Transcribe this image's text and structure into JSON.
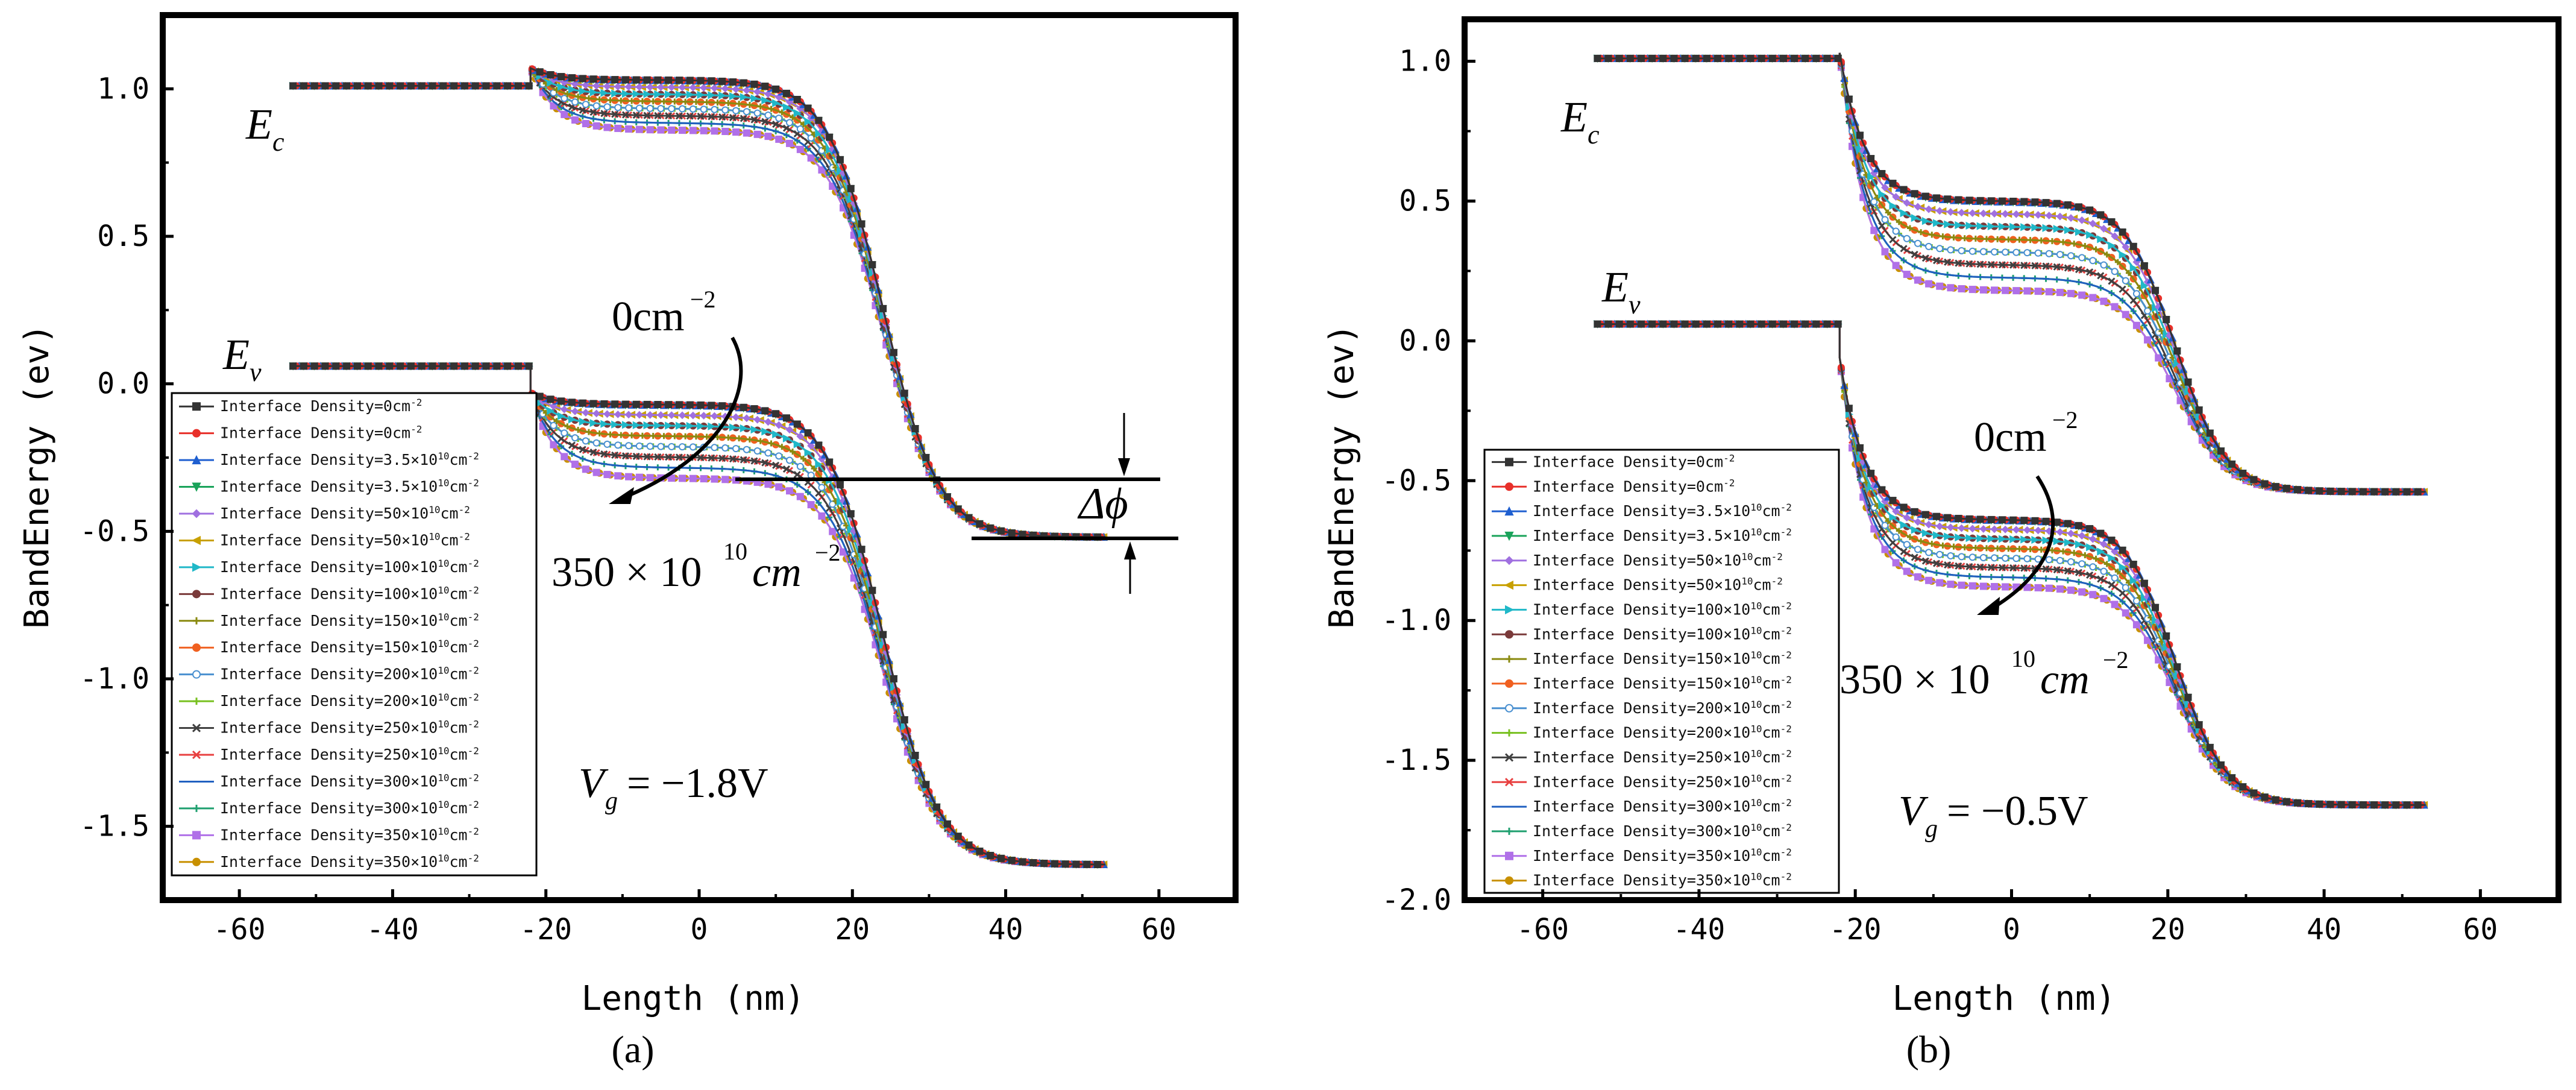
{
  "chart_data": [
    {
      "type": "line",
      "panel": "(a)",
      "xlabel": "Length (nm)",
      "ylabel": "BandEnergy (ev)",
      "xlim": [
        -70,
        70
      ],
      "ylim": [
        -1.75,
        1.25
      ],
      "xticks": [
        -60,
        -40,
        -20,
        0,
        20,
        40,
        60
      ],
      "yticks": [
        1.0,
        0.5,
        0.0,
        -0.5,
        -1.0,
        -1.5
      ],
      "ytick_labels": [
        "1.0",
        "0.5",
        "0.0",
        "-0.5",
        "-1.0",
        "-1.5"
      ],
      "xtick_labels": [
        "-60",
        "-40",
        "-20",
        "0",
        "20",
        "40",
        "60"
      ],
      "band_model": {
        "left_x": -53,
        "junction_x": -22,
        "right_x": 53,
        "ec_left": 1.01,
        "ec_start": 1.07,
        "ec_right": -0.52,
        "ev_left": 0.06,
        "ev_start": -0.03,
        "ev_right": -1.63,
        "center": 24,
        "width": 3.6,
        "ec_plateau_top": 1.03,
        "ec_plateau_bottom": 0.86,
        "ev_plateau_top": -0.07,
        "ev_plateau_bottom": -0.32
      },
      "annotations": {
        "ec_label": "E",
        "ec_sub": "c",
        "ev_label": "E",
        "ev_sub": "v",
        "density_low": "0cm",
        "density_low_exp": "−2",
        "density_high": "350 × 10",
        "density_high_exp": "10",
        "density_high_unit": "cm",
        "density_high_unit_exp": "−2",
        "vg_label": "V",
        "vg_sub": "g",
        "vg_value": " = −1.8V",
        "delta_phi": "Δϕ"
      },
      "caption": "(a)"
    },
    {
      "type": "line",
      "panel": "(b)",
      "xlabel": "Length (nm)",
      "ylabel": "BandEnergy (ev)",
      "xlim": [
        -70,
        70
      ],
      "ylim": [
        -2.0,
        1.15
      ],
      "xticks": [
        -60,
        -40,
        -20,
        0,
        20,
        40,
        60
      ],
      "yticks": [
        1.0,
        0.5,
        0.0,
        -0.5,
        -1.0,
        -1.5,
        -2.0
      ],
      "ytick_labels": [
        "1.0",
        "0.5",
        "0.0",
        "-0.5",
        "-1.0",
        "-1.5",
        "-2.0"
      ],
      "xtick_labels": [
        "-60",
        "-40",
        "-20",
        "0",
        "20",
        "40",
        "60"
      ],
      "band_model": {
        "left_x": -53,
        "junction_x": -22,
        "right_x": 53,
        "ec_left": 1.01,
        "ec_start": 1.03,
        "ec_right": -0.54,
        "ev_left": 0.06,
        "ev_start": -0.06,
        "ev_right": -1.66,
        "center": 21,
        "width": 3.2,
        "ec_plateau_top": 0.5,
        "ec_plateau_bottom": 0.18,
        "ev_plateau_top": -0.64,
        "ev_plateau_bottom": -0.88
      },
      "annotations": {
        "ec_label": "E",
        "ec_sub": "c",
        "ev_label": "E",
        "ev_sub": "v",
        "density_low": "0cm",
        "density_low_exp": "−2",
        "density_high": "350 × 10",
        "density_high_exp": "10",
        "density_high_unit": "cm",
        "density_high_unit_exp": "−2",
        "vg_label": "V",
        "vg_sub": "g",
        "vg_value": " = −0.5V"
      },
      "caption": "(b)"
    }
  ],
  "series": [
    {
      "name": "Interface Density=0cm",
      "sup": "-2",
      "density": 0,
      "color": "#333333",
      "marker": "square"
    },
    {
      "name": "Interface Density=0cm",
      "sup": "-2",
      "density": 0,
      "color": "#e8302a",
      "marker": "circle"
    },
    {
      "name": "Interface Density=3.5×10",
      "sup": "10",
      "unit": "cm",
      "sup2": "-2",
      "density": 3.5,
      "color": "#1f5fd0",
      "marker": "triangle-up"
    },
    {
      "name": "Interface Density=3.5×10",
      "sup": "10",
      "unit": "cm",
      "sup2": "-2",
      "density": 3.5,
      "color": "#1aa35a",
      "marker": "triangle-down"
    },
    {
      "name": "Interface Density=50×10",
      "sup": "10",
      "unit": "cm",
      "sup2": "-2",
      "density": 50,
      "color": "#a070e0",
      "marker": "diamond"
    },
    {
      "name": "Interface Density=50×10",
      "sup": "10",
      "unit": "cm",
      "sup2": "-2",
      "density": 50,
      "color": "#c8a000",
      "marker": "triangle-left"
    },
    {
      "name": "Interface Density=100×10",
      "sup": "10",
      "unit": "cm",
      "sup2": "-2",
      "density": 100,
      "color": "#20b8c8",
      "marker": "triangle-right"
    },
    {
      "name": "Interface Density=100×10",
      "sup": "10",
      "unit": "cm",
      "sup2": "-2",
      "density": 100,
      "color": "#7a3a3a",
      "marker": "hexagon"
    },
    {
      "name": "Interface Density=150×10",
      "sup": "10",
      "unit": "cm",
      "sup2": "-2",
      "density": 150,
      "color": "#8a8a10",
      "marker": "star"
    },
    {
      "name": "Interface Density=150×10",
      "sup": "10",
      "unit": "cm",
      "sup2": "-2",
      "density": 150,
      "color": "#f06020",
      "marker": "circle"
    },
    {
      "name": "Interface Density=200×10",
      "sup": "10",
      "unit": "cm",
      "sup2": "-2",
      "density": 200,
      "color": "#4a90d0",
      "marker": "circle-open"
    },
    {
      "name": "Interface Density=200×10",
      "sup": "10",
      "unit": "cm",
      "sup2": "-2",
      "density": 200,
      "color": "#78c020",
      "marker": "plus"
    },
    {
      "name": "Interface Density=250×10",
      "sup": "10",
      "unit": "cm",
      "sup2": "-2",
      "density": 250,
      "color": "#404040",
      "marker": "x"
    },
    {
      "name": "Interface Density=250×10",
      "sup": "10",
      "unit": "cm",
      "sup2": "-2",
      "density": 250,
      "color": "#e84040",
      "marker": "x"
    },
    {
      "name": "Interface Density=300×10",
      "sup": "10",
      "unit": "cm",
      "sup2": "-2",
      "density": 300,
      "color": "#2060c0",
      "marker": "none"
    },
    {
      "name": "Interface Density=300×10",
      "sup": "10",
      "unit": "cm",
      "sup2": "-2",
      "density": 300,
      "color": "#20a070",
      "marker": "plus"
    },
    {
      "name": "Interface Density=350×10",
      "sup": "10",
      "unit": "cm",
      "sup2": "-2",
      "density": 350,
      "color": "#b070e8",
      "marker": "square"
    },
    {
      "name": "Interface Density=350×10",
      "sup": "10",
      "unit": "cm",
      "sup2": "-2",
      "density": 350,
      "color": "#c89000",
      "marker": "circle"
    }
  ]
}
